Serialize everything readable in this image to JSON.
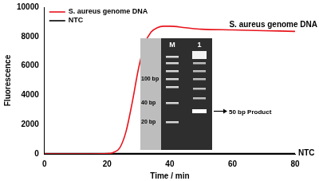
{
  "chart_data": {
    "type": "line",
    "x_label": "Time / min",
    "y_label": "Fluorescence",
    "xlim": [
      0,
      80
    ],
    "xticks": [
      0,
      20,
      40,
      60,
      80
    ],
    "ylim": [
      0,
      10000
    ],
    "yticks": [
      0,
      2000,
      4000,
      6000,
      8000,
      10000
    ],
    "grid": false,
    "legend": "upper left",
    "series": [
      {
        "name": "S. aureus genome DNA",
        "color": "#e8141c",
        "x": [
          0,
          5,
          10,
          15,
          20,
          22,
          24,
          26,
          28,
          30,
          32,
          34,
          36,
          38,
          40,
          45,
          50,
          60,
          70,
          80
        ],
        "values": [
          0,
          0,
          0,
          0,
          20,
          100,
          400,
          1500,
          3500,
          5800,
          7500,
          8300,
          8600,
          8700,
          8700,
          8600,
          8500,
          8450,
          8400,
          8350
        ]
      },
      {
        "name": "NTC",
        "color": "#000000",
        "x": [
          0,
          20,
          40,
          60,
          80
        ],
        "values": [
          30,
          30,
          30,
          30,
          30
        ]
      }
    ]
  },
  "inset": {
    "lanes": [
      "M",
      "1"
    ],
    "marker_labels": [
      "100 bp",
      "40 bp",
      "20 bp"
    ],
    "product_label": "50 bp Product"
  }
}
